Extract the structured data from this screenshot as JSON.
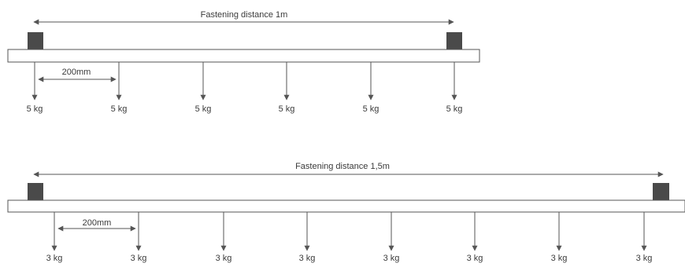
{
  "colors": {
    "line": "#555555",
    "beam_fill": "#ffffff",
    "fastener": "#4a4a4a",
    "text": "#3a3a3a"
  },
  "diagrams": [
    {
      "id": "top",
      "distance_label": "Fastening distance 1m",
      "spacing_label": "200mm",
      "loads": [
        "5 kg",
        "5 kg",
        "5 kg",
        "5 kg",
        "5 kg",
        "5 kg"
      ]
    },
    {
      "id": "bottom",
      "distance_label": "Fastening distance 1,5m",
      "spacing_label": "200mm",
      "loads": [
        "3 kg",
        "3 kg",
        "3 kg",
        "3 kg",
        "3 kg",
        "3 kg",
        "3 kg",
        "3 kg"
      ]
    }
  ]
}
